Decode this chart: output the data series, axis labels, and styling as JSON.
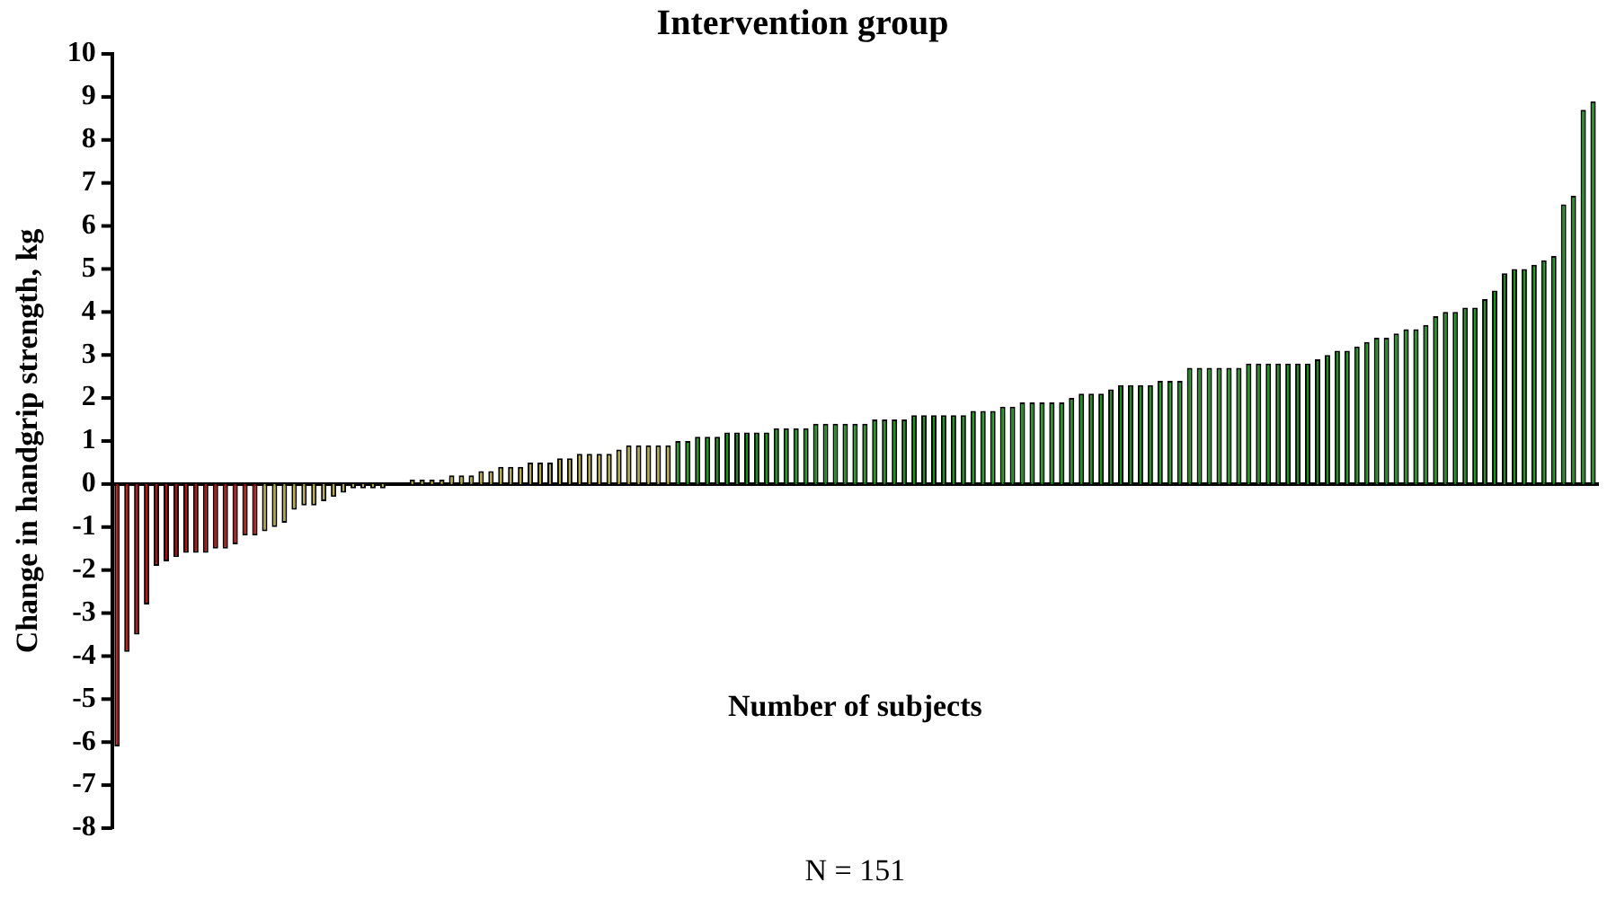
{
  "chart_data": {
    "type": "bar",
    "title": "Intervention group",
    "xlabel": "Number of subjects",
    "ylabel": "Change in handgrip strength, kg",
    "annotations": [
      "N = 151"
    ],
    "categories": [
      null,
      null,
      null,
      null,
      null,
      null,
      null,
      null,
      null,
      null,
      null,
      null,
      null,
      null,
      null,
      null,
      null,
      null,
      null,
      null,
      null,
      null,
      null,
      null,
      null,
      null,
      null,
      null,
      null,
      null,
      null,
      null,
      null,
      null,
      null,
      null,
      null,
      null,
      null,
      null,
      null,
      null,
      null,
      null,
      null,
      null,
      null,
      null,
      null,
      null,
      null,
      null,
      null,
      null,
      null,
      null,
      null,
      null,
      null,
      null,
      null,
      null,
      null,
      null,
      null,
      null,
      null,
      null,
      null,
      null,
      null,
      null,
      null,
      null,
      null,
      null,
      null,
      null,
      null,
      null,
      null,
      null,
      null,
      null,
      null,
      null,
      null,
      null,
      null,
      null,
      null,
      null,
      null,
      null,
      null,
      null,
      null,
      null,
      null,
      null,
      null,
      null,
      null,
      null,
      null,
      null,
      null,
      null,
      null,
      null,
      null,
      null,
      null,
      null,
      null,
      null,
      null,
      null,
      null,
      null,
      null,
      null,
      null,
      null,
      null,
      null,
      null,
      null,
      null,
      null,
      null,
      null,
      null,
      null,
      null,
      null,
      null,
      null,
      null,
      null,
      null,
      null,
      null,
      null,
      null,
      null,
      null,
      null,
      null,
      null,
      null
    ],
    "values": [
      -6.1,
      -3.9,
      -3.5,
      -2.8,
      -1.9,
      -1.8,
      -1.7,
      -1.6,
      -1.6,
      -1.6,
      -1.5,
      -1.5,
      -1.4,
      -1.2,
      -1.2,
      -1.1,
      -1.0,
      -0.9,
      -0.6,
      -0.5,
      -0.5,
      -0.4,
      -0.3,
      -0.2,
      -0.1,
      -0.1,
      -0.1,
      -0.1,
      0,
      0,
      0.1,
      0.1,
      0.1,
      0.1,
      0.2,
      0.2,
      0.2,
      0.3,
      0.3,
      0.4,
      0.4,
      0.4,
      0.5,
      0.5,
      0.5,
      0.6,
      0.6,
      0.7,
      0.7,
      0.7,
      0.7,
      0.8,
      0.9,
      0.9,
      0.9,
      0.9,
      0.9,
      1.0,
      1.0,
      1.1,
      1.1,
      1.1,
      1.2,
      1.2,
      1.2,
      1.2,
      1.2,
      1.3,
      1.3,
      1.3,
      1.3,
      1.4,
      1.4,
      1.4,
      1.4,
      1.4,
      1.4,
      1.5,
      1.5,
      1.5,
      1.5,
      1.6,
      1.6,
      1.6,
      1.6,
      1.6,
      1.6,
      1.7,
      1.7,
      1.7,
      1.8,
      1.8,
      1.9,
      1.9,
      1.9,
      1.9,
      1.9,
      2.0,
      2.1,
      2.1,
      2.1,
      2.2,
      2.3,
      2.3,
      2.3,
      2.3,
      2.4,
      2.4,
      2.4,
      2.7,
      2.7,
      2.7,
      2.7,
      2.7,
      2.7,
      2.8,
      2.8,
      2.8,
      2.8,
      2.8,
      2.8,
      2.8,
      2.9,
      3.0,
      3.1,
      3.1,
      3.2,
      3.3,
      3.4,
      3.4,
      3.5,
      3.6,
      3.6,
      3.7,
      3.9,
      4.0,
      4.0,
      4.1,
      4.1,
      4.3,
      4.5,
      4.9,
      5.0,
      5.0,
      5.1,
      5.2,
      5.3,
      6.5,
      6.7,
      8.7,
      8.9
    ],
    "colors": [
      "#cc0000",
      "#cc0000",
      "#cc0000",
      "#cc0000",
      "#cc0000",
      "#cc0000",
      "#cc0000",
      "#cc0000",
      "#cc0000",
      "#cc0000",
      "#cc0000",
      "#cc0000",
      "#cc0000",
      "#cc0000",
      "#cc0000",
      "#b8b020",
      "#b8b020",
      "#b8b020",
      "#b8b020",
      "#b8b020",
      "#b8b020",
      "#b8b020",
      "#b8b020",
      "#b8b020",
      "#b8b020",
      "#b8b020",
      "#b8b020",
      "#b8b020",
      "#b8b020",
      "#b8b020",
      "#b8b020",
      "#b8b020",
      "#b8b020",
      "#b8b020",
      "#b8b020",
      "#b8b020",
      "#b8b020",
      "#b8b020",
      "#b8b020",
      "#b8b020",
      "#b8b020",
      "#b8b020",
      "#b8b020",
      "#b8b020",
      "#b8b020",
      "#b8b020",
      "#b8b020",
      "#b8b020",
      "#b8b020",
      "#b8b020",
      "#b8b020",
      "#b8b020",
      "#b8b020",
      "#b8b020",
      "#b8b020",
      "#b8b020",
      "#b8b020",
      "#00a000",
      "#00a000",
      "#00a000",
      "#00a000",
      "#00a000",
      "#00a000",
      "#00a000",
      "#00a000",
      "#00a000",
      "#00a000",
      "#00a000",
      "#00a000",
      "#00a000",
      "#00a000",
      "#00a000",
      "#00a000",
      "#00a000",
      "#00a000",
      "#00a000",
      "#00a000",
      "#00a000",
      "#00a000",
      "#00a000",
      "#00a000",
      "#00a000",
      "#00a000",
      "#00a000",
      "#00a000",
      "#00a000",
      "#00a000",
      "#00a000",
      "#00a000",
      "#00a000",
      "#00a000",
      "#00a000",
      "#00a000",
      "#00a000",
      "#00a000",
      "#00a000",
      "#00a000",
      "#00a000",
      "#00a000",
      "#00a000",
      "#00a000",
      "#00a000",
      "#00a000",
      "#00a000",
      "#00a000",
      "#00a000",
      "#00a000",
      "#00a000",
      "#00a000",
      "#00a000",
      "#00a000",
      "#00a000",
      "#00a000",
      "#00a000",
      "#00a000",
      "#00a000",
      "#00a000",
      "#00a000",
      "#00a000",
      "#00a000",
      "#00a000",
      "#00a000",
      "#00a000",
      "#00a000",
      "#00a000",
      "#00a000",
      "#00a000",
      "#00a000",
      "#00a000",
      "#00a000",
      "#00a000",
      "#00a000",
      "#00a000",
      "#00a000",
      "#00a000",
      "#00a000",
      "#00a000",
      "#00a000",
      "#00a000",
      "#00a000",
      "#00a000",
      "#00a000",
      "#00a000",
      "#00a000",
      "#00a000",
      "#00a000",
      "#00a000",
      "#00a000",
      "#00a000",
      "#00a000",
      "#00a000"
    ],
    "ylim": [
      -8,
      10
    ],
    "yticks": [
      -8,
      -7,
      -6,
      -5,
      -4,
      -3,
      -2,
      -1,
      0,
      1,
      2,
      3,
      4,
      5,
      6,
      7,
      8,
      9,
      10
    ],
    "tick_labels": "y",
    "legend": false
  }
}
